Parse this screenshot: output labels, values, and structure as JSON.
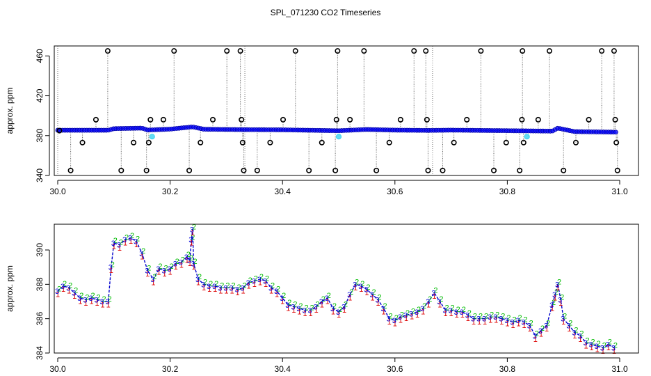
{
  "figure": {
    "title": "SPL_071230  CO2 Timeseries"
  },
  "chart_data": [
    {
      "type": "scatter",
      "ylabel": "approx. ppm",
      "xlim": [
        30.0,
        31.0
      ],
      "ylim": [
        340,
        470
      ],
      "x_ticks": [
        30.0,
        30.2,
        30.4,
        30.6,
        30.8,
        31.0
      ],
      "x_tick_labels": [
        "30.0",
        "30.2",
        "30.4",
        "30.6",
        "30.8",
        "31.0"
      ],
      "y_ticks": [
        340,
        380,
        420,
        460
      ],
      "y_tick_labels": [
        "340",
        "380",
        "420",
        "460"
      ],
      "vertical_lines_x": [
        30.0,
        30.333,
        30.667
      ],
      "baseline": {
        "x": [
          30.0,
          30.09,
          30.1,
          30.15,
          30.16,
          30.2,
          30.24,
          30.26,
          30.33,
          30.4,
          30.5,
          30.55,
          30.6,
          30.66,
          30.7,
          30.88,
          30.89,
          30.92,
          30.99
        ],
        "y": [
          385.4,
          385.4,
          387.0,
          387.5,
          385.6,
          386.5,
          388.8,
          386.4,
          386.0,
          385.8,
          384.9,
          386.2,
          385.5,
          385.2,
          385.5,
          384.5,
          387.5,
          384.0,
          383.5
        ],
        "color_fill": "#0000ff",
        "color_line": "#0000aa"
      },
      "outliers": {
        "x": [
          30.003,
          30.023,
          30.044,
          30.068,
          30.089,
          30.113,
          30.135,
          30.158,
          30.162,
          30.165,
          30.188,
          30.207,
          30.234,
          30.254,
          30.276,
          30.301,
          30.325,
          30.327,
          30.329,
          30.331,
          30.355,
          30.378,
          30.401,
          30.423,
          30.447,
          30.47,
          30.494,
          30.496,
          30.498,
          30.52,
          30.545,
          30.567,
          30.59,
          30.61,
          30.634,
          30.655,
          30.657,
          30.659,
          30.685,
          30.705,
          30.728,
          30.753,
          30.776,
          30.798,
          30.822,
          30.826,
          30.827,
          30.829,
          30.855,
          30.875,
          30.9,
          30.922,
          30.945,
          30.968,
          30.99,
          30.992,
          30.994,
          30.996
        ],
        "y": [
          385,
          345,
          373,
          396,
          465,
          345,
          373,
          345,
          373,
          396,
          396,
          465,
          345,
          373,
          396,
          465,
          465,
          396,
          373,
          345,
          345,
          373,
          396,
          465,
          345,
          373,
          345,
          396,
          465,
          396,
          465,
          345,
          373,
          396,
          465,
          465,
          396,
          345,
          345,
          373,
          396,
          465,
          345,
          373,
          345,
          396,
          465,
          373,
          396,
          465,
          345,
          373,
          396,
          465,
          465,
          396,
          373,
          345
        ],
        "color": "#000000"
      },
      "highlights": {
        "x": [
          30.168,
          30.5,
          30.835
        ],
        "y": [
          379,
          379,
          379
        ],
        "color": "#22ccee"
      }
    },
    {
      "type": "scatter",
      "ylabel": "approx. ppm",
      "xlim": [
        30.0,
        31.0
      ],
      "ylim": [
        384,
        391.5
      ],
      "x_ticks": [
        30.0,
        30.2,
        30.4,
        30.6,
        30.8,
        31.0
      ],
      "x_tick_labels": [
        "30.0",
        "30.2",
        "30.4",
        "30.6",
        "30.8",
        "31.0"
      ],
      "y_ticks": [
        384,
        386,
        388,
        390
      ],
      "y_tick_labels": [
        "384",
        "386",
        "388",
        "390"
      ],
      "series": [
        {
          "marker": "1",
          "color": "#dd0000"
        },
        {
          "marker": "2",
          "color": "#00bb00"
        },
        {
          "marker": "3",
          "color": "#0000dd"
        }
      ],
      "line_color": "#0000cc",
      "x": [
        30.0,
        30.01,
        30.02,
        30.03,
        30.04,
        30.05,
        30.06,
        30.07,
        30.08,
        30.09,
        30.095,
        30.1,
        30.11,
        30.12,
        30.13,
        30.14,
        30.15,
        30.16,
        30.17,
        30.18,
        30.19,
        30.2,
        30.21,
        30.22,
        30.23,
        30.235,
        30.238,
        30.24,
        30.242,
        30.25,
        30.26,
        30.27,
        30.28,
        30.29,
        30.3,
        30.31,
        30.32,
        30.33,
        30.34,
        30.35,
        30.36,
        30.37,
        30.38,
        30.39,
        30.4,
        30.41,
        30.42,
        30.43,
        30.44,
        30.45,
        30.46,
        30.47,
        30.48,
        30.49,
        30.5,
        30.51,
        30.52,
        30.53,
        30.54,
        30.55,
        30.56,
        30.57,
        30.58,
        30.59,
        30.6,
        30.61,
        30.62,
        30.63,
        30.64,
        30.65,
        30.66,
        30.67,
        30.68,
        30.69,
        30.7,
        30.71,
        30.72,
        30.73,
        30.74,
        30.75,
        30.76,
        30.77,
        30.78,
        30.79,
        30.8,
        30.81,
        30.82,
        30.83,
        30.84,
        30.85,
        30.86,
        30.87,
        30.88,
        30.885,
        30.89,
        30.895,
        30.9,
        30.91,
        30.92,
        30.93,
        30.94,
        30.95,
        30.96,
        30.97,
        30.98,
        30.99
      ],
      "y": [
        387.6,
        387.9,
        387.8,
        387.5,
        387.2,
        387.1,
        387.2,
        387.1,
        387.0,
        387.0,
        389.0,
        390.4,
        390.3,
        390.6,
        390.7,
        390.5,
        389.8,
        388.8,
        388.3,
        388.9,
        388.8,
        388.9,
        389.2,
        389.3,
        389.6,
        389.4,
        390.6,
        391.2,
        389.2,
        388.3,
        388.0,
        387.9,
        387.9,
        387.8,
        387.8,
        387.8,
        387.7,
        387.8,
        388.1,
        388.2,
        388.3,
        388.2,
        387.8,
        387.6,
        387.2,
        386.8,
        386.7,
        386.6,
        386.5,
        386.5,
        386.7,
        387.0,
        387.2,
        386.6,
        386.4,
        386.7,
        387.4,
        388.0,
        387.9,
        387.7,
        387.4,
        387.1,
        386.6,
        386.0,
        385.9,
        386.1,
        386.2,
        386.3,
        386.4,
        386.6,
        387.0,
        387.5,
        387.0,
        386.5,
        386.5,
        386.4,
        386.4,
        386.2,
        386.0,
        386.0,
        386.0,
        386.1,
        386.1,
        386.0,
        385.9,
        385.8,
        385.9,
        385.8,
        385.6,
        385.0,
        385.3,
        385.6,
        386.8,
        387.4,
        388.0,
        387.1,
        386.0,
        385.6,
        385.2,
        385.0,
        384.6,
        384.5,
        384.4,
        384.3,
        384.5,
        384.3
      ]
    }
  ]
}
